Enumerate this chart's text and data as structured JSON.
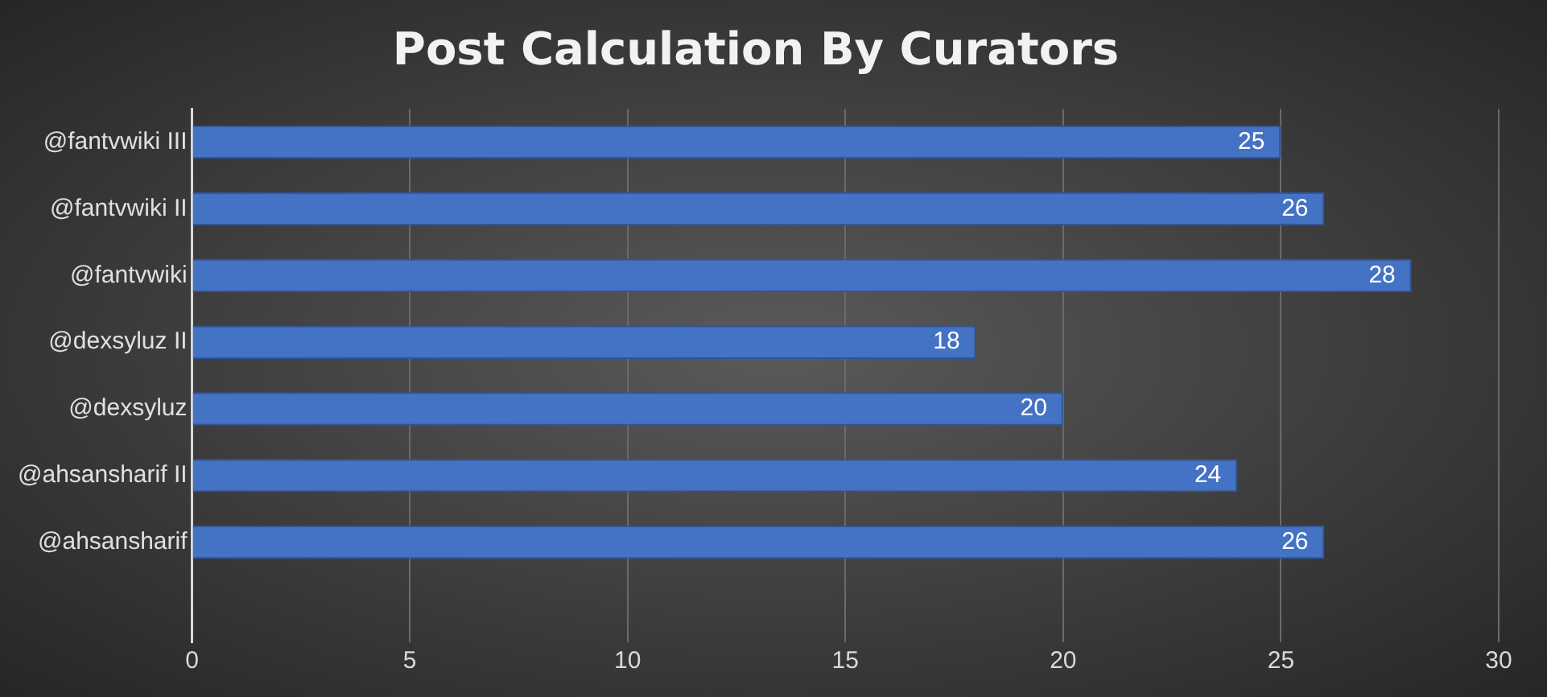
{
  "chart_data": {
    "type": "bar",
    "orientation": "horizontal",
    "title": "Post Calculation By Curators",
    "categories": [
      "@fantvwiki III",
      "@fantvwiki II",
      "@fantvwiki",
      "@dexsyluz II",
      "@dexsyluz",
      "@ahsansharif II",
      "@ahsansharif",
      null
    ],
    "values": [
      25,
      26,
      28,
      18,
      20,
      24,
      26,
      null
    ],
    "color": "#4472c4",
    "xlim": [
      0,
      30
    ],
    "xticks": [
      0,
      5,
      10,
      15,
      20,
      25,
      30
    ],
    "grid": "x",
    "data_labels": true,
    "legend": false
  }
}
